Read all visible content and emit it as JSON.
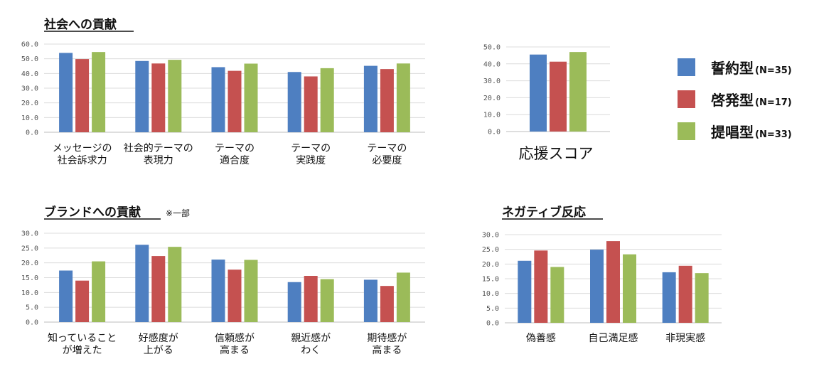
{
  "legend": [
    {
      "name": "誓約型",
      "n": "(N=35)",
      "color": "#4e7fc1"
    },
    {
      "name": "啓発型",
      "n": "(N=17)",
      "color": "#c55150"
    },
    {
      "name": "提唱型",
      "n": "(N=33)",
      "color": "#9bbb59"
    }
  ],
  "chart_data": [
    {
      "id": "social",
      "type": "bar",
      "title": "社会への貢献",
      "xlabel": "",
      "ylabel": "",
      "ylim": [
        0,
        60
      ],
      "yticks": [
        "0.0",
        "10.0",
        "20.0",
        "30.0",
        "40.0",
        "50.0",
        "60.0"
      ],
      "grid": true,
      "categories": [
        [
          "メッセージの",
          "社会訴求力"
        ],
        [
          "社会的テーマの",
          "表現力"
        ],
        [
          "テーマの",
          "適合度"
        ],
        [
          "テーマの",
          "実践度"
        ],
        [
          "テーマの",
          "必要度"
        ]
      ],
      "series": [
        {
          "name": "誓約型",
          "values": [
            54.0,
            48.5,
            44.3,
            41.0,
            45.2
          ]
        },
        {
          "name": "啓発型",
          "values": [
            49.8,
            46.8,
            41.8,
            38.0,
            43.0
          ]
        },
        {
          "name": "提唱型",
          "values": [
            54.6,
            49.3,
            46.7,
            43.6,
            46.8
          ]
        }
      ]
    },
    {
      "id": "support",
      "type": "bar",
      "title": "",
      "xlabel": "応援スコア",
      "ylabel": "",
      "ylim": [
        0,
        50
      ],
      "yticks": [
        "0.0",
        "10.0",
        "20.0",
        "30.0",
        "40.0",
        "50.0"
      ],
      "grid": true,
      "categories": [
        [
          ""
        ]
      ],
      "series": [
        {
          "name": "誓約型",
          "values": [
            45.5
          ]
        },
        {
          "name": "啓発型",
          "values": [
            41.3
          ]
        },
        {
          "name": "提唱型",
          "values": [
            47.0
          ]
        }
      ]
    },
    {
      "id": "brand",
      "type": "bar",
      "title": "ブランドへの貢献",
      "note": "※一部",
      "xlabel": "",
      "ylabel": "",
      "ylim": [
        0,
        30
      ],
      "yticks": [
        "0.0",
        "5.0",
        "10.0",
        "15.0",
        "20.0",
        "25.0",
        "30.0"
      ],
      "grid": true,
      "categories": [
        [
          "知っていること",
          "が増えた"
        ],
        [
          "好感度が",
          "上がる"
        ],
        [
          "信頼感が",
          "高まる"
        ],
        [
          "親近感が",
          "わく"
        ],
        [
          "期待感が",
          "高まる"
        ]
      ],
      "series": [
        {
          "name": "誓約型",
          "values": [
            17.4,
            26.1,
            21.1,
            13.5,
            14.3
          ]
        },
        {
          "name": "啓発型",
          "values": [
            14.0,
            22.3,
            17.7,
            15.6,
            12.2
          ]
        },
        {
          "name": "提唱型",
          "values": [
            20.5,
            25.4,
            21.0,
            14.5,
            16.7
          ]
        }
      ]
    },
    {
      "id": "negative",
      "type": "bar",
      "title": "ネガティブ反応",
      "xlabel": "",
      "ylabel": "",
      "ylim": [
        0,
        30
      ],
      "yticks": [
        "0.0",
        "5.0",
        "10.0",
        "15.0",
        "20.0",
        "25.0",
        "30.0"
      ],
      "grid": true,
      "categories": [
        [
          "偽善感"
        ],
        [
          "自己満足感"
        ],
        [
          "非現実感"
        ]
      ],
      "series": [
        {
          "name": "誓約型",
          "values": [
            21.1,
            24.9,
            17.2
          ]
        },
        {
          "name": "啓発型",
          "values": [
            24.6,
            27.8,
            19.4
          ]
        },
        {
          "name": "提唱型",
          "values": [
            19.0,
            23.3,
            16.9
          ]
        }
      ]
    }
  ]
}
